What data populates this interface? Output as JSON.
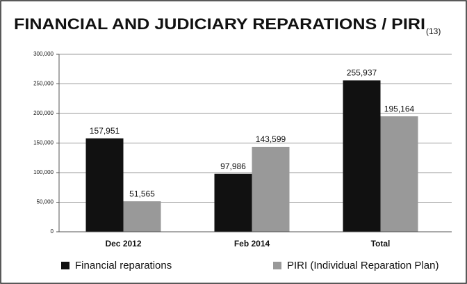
{
  "chart_data": {
    "type": "bar",
    "title": "FINANCIAL AND JUDICIARY REPARATIONS / PIRI",
    "title_suffix": "(13)",
    "categories": [
      "Dec 2012",
      "Feb 2014",
      "Total"
    ],
    "series": [
      {
        "name": "Financial reparations",
        "color": "#111111",
        "values": [
          157951,
          97986,
          255937
        ],
        "value_labels": [
          "157,951",
          "97,986",
          "255,937"
        ]
      },
      {
        "name": "PIRI (Individual Reparation Plan)",
        "color": "#999999",
        "values": [
          51565,
          143599,
          195164
        ],
        "value_labels": [
          "51,565",
          "143,599",
          "195,164"
        ]
      }
    ],
    "ylim": [
      0,
      300000
    ],
    "yticks": [
      0,
      {
        "value": 50000,
        "label": "50,000"
      },
      {
        "value": 100000,
        "label": "100,000"
      },
      {
        "value": 150000,
        "label": "150,000"
      },
      {
        "value": 200000,
        "label": "200,000"
      },
      {
        "value": 250000,
        "label": "250,000"
      },
      {
        "value": 300000,
        "label": "300,000"
      }
    ],
    "grid": true
  }
}
